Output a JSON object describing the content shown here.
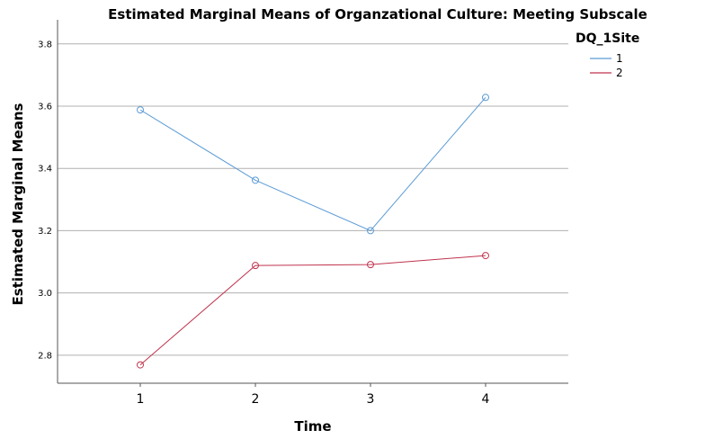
{
  "chart_data": {
    "type": "line",
    "title": "Estimated Marginal Means of Organzational Culture: Meeting Subscale",
    "xlabel": "Time",
    "ylabel": "Estimated Marginal Means",
    "categories": [
      "1",
      "2",
      "3",
      "4"
    ],
    "y_ticks": [
      "2.8",
      "3.0",
      "3.2",
      "3.4",
      "3.6",
      "3.8"
    ],
    "ylim": [
      2.71,
      3.86
    ],
    "grid": true,
    "legend": {
      "title": "DQ_1Site",
      "placement": "top-right"
    },
    "series": [
      {
        "name": "1",
        "color": "#5b9bd5",
        "values": [
          3.588,
          3.362,
          3.2,
          3.628
        ]
      },
      {
        "name": "2",
        "color": "#c0334d",
        "values": [
          2.769,
          3.088,
          3.091,
          3.12
        ]
      }
    ]
  }
}
